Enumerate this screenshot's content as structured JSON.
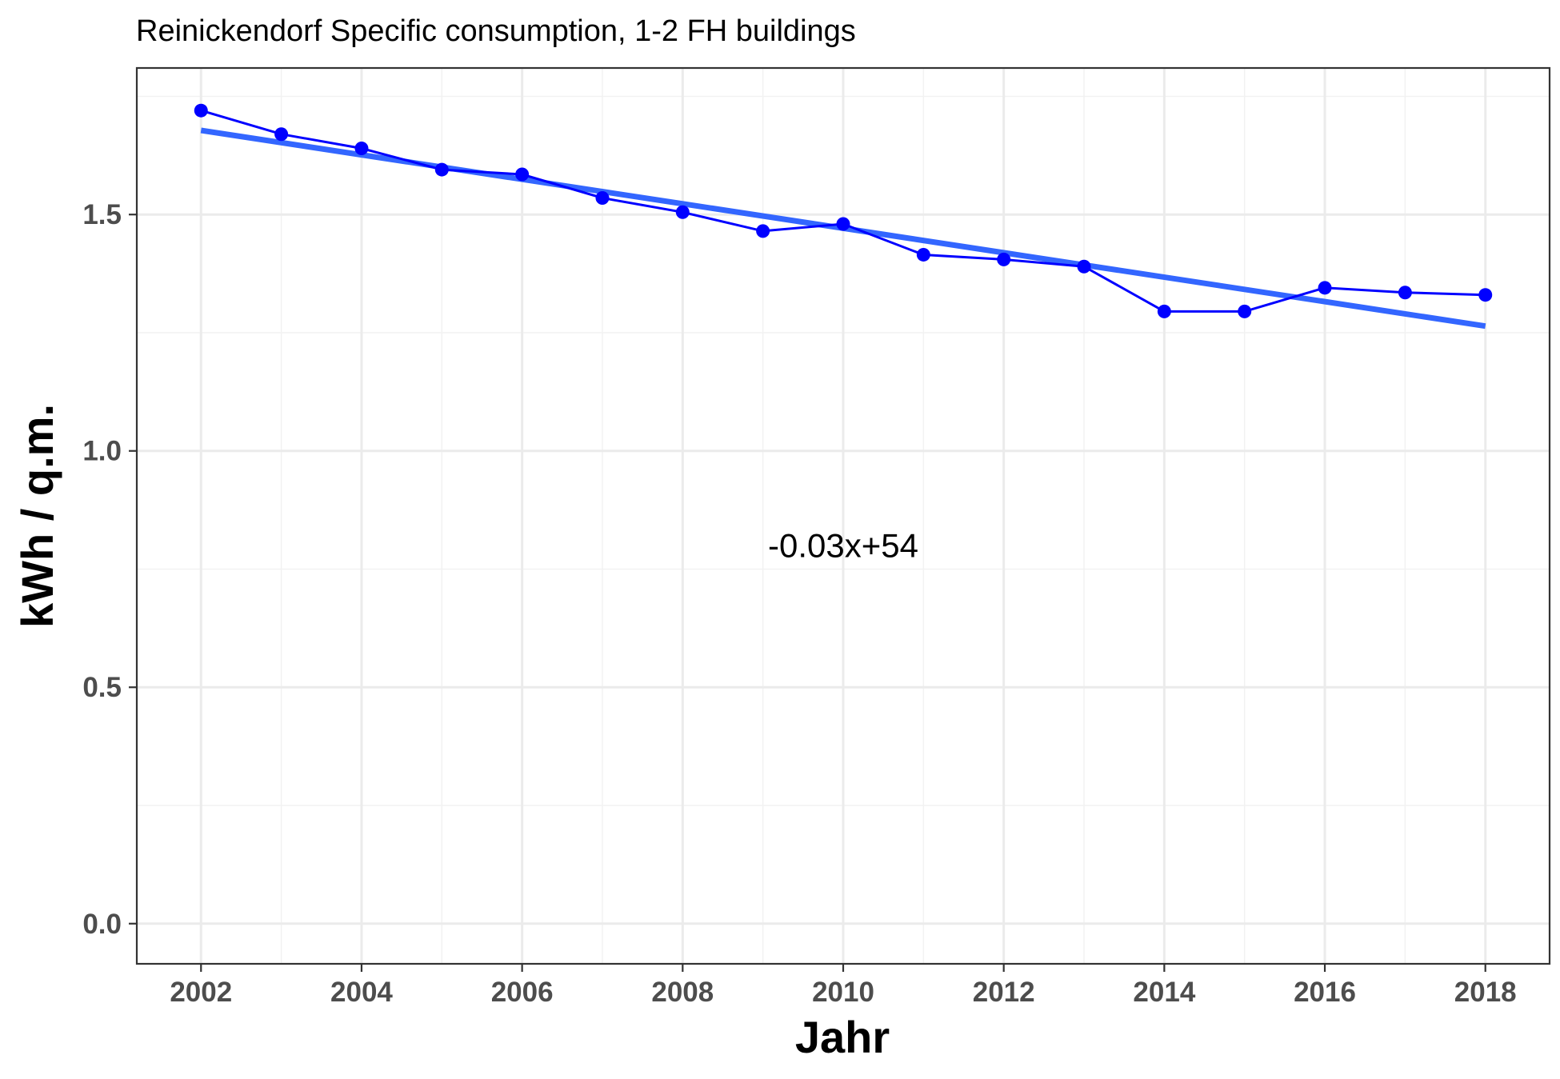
{
  "chart_data": {
    "type": "line",
    "title": "Reinickendorf Specific consumption, 1-2 FH buildings",
    "xlabel": "Jahr",
    "ylabel": "kWh / q.m.",
    "xlim": [
      2001.2,
      2018.8
    ],
    "ylim": [
      -0.085,
      1.81
    ],
    "x_ticks": [
      2002,
      2004,
      2006,
      2008,
      2010,
      2012,
      2014,
      2016,
      2018
    ],
    "x_tick_labels": [
      "2002",
      "2004",
      "2006",
      "2008",
      "2010",
      "2012",
      "2014",
      "2016",
      "2018"
    ],
    "y_ticks": [
      0.0,
      0.5,
      1.0,
      1.5
    ],
    "y_tick_labels": [
      "0.0",
      "0.5",
      "1.0",
      "1.5"
    ],
    "grid": true,
    "series": [
      {
        "x": [
          2002,
          2003,
          2004,
          2005,
          2006,
          2007,
          2008,
          2009,
          2010,
          2011,
          2012,
          2013,
          2014,
          2015,
          2016,
          2017,
          2018
        ],
        "values": [
          1.72,
          1.67,
          1.64,
          1.595,
          1.585,
          1.535,
          1.505,
          1.465,
          1.48,
          1.415,
          1.405,
          1.39,
          1.295,
          1.295,
          1.345,
          1.335,
          1.33
        ],
        "color": "#0000ff"
      }
    ],
    "trendline": {
      "x": [
        2002,
        2018
      ],
      "values": [
        1.678,
        1.264
      ],
      "color": "#3366ff"
    },
    "annotation": "-0.03x+54"
  }
}
